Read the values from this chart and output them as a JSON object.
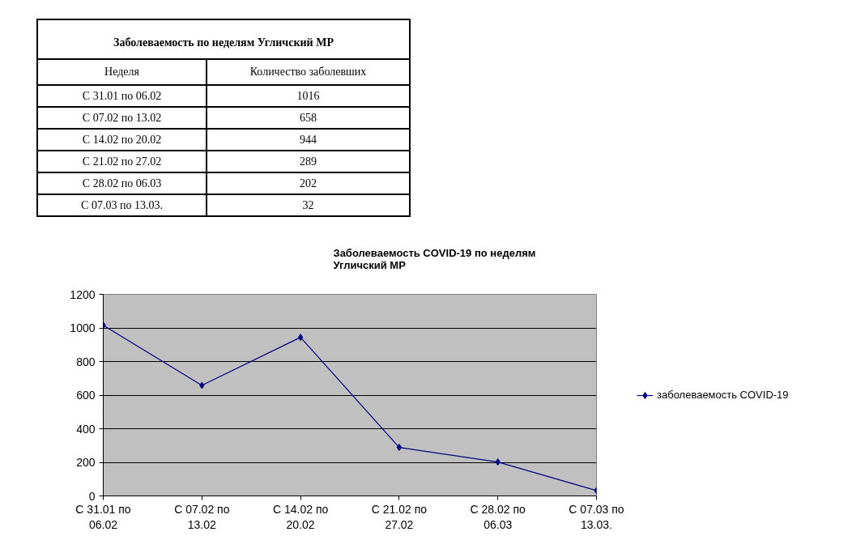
{
  "chart_data": [
    {
      "type": "other",
      "title": "Заболеваемость по неделям Угличский МР",
      "xlabel": "Неделя",
      "ylabel": "Количество заболевших",
      "categories": [
        "С 31.01 по 06.02",
        "С 07.02 по 13.02",
        "С 14.02 по 20.02",
        "С 21.02 по 27.02",
        "С 28.02 по 06.03",
        "С 07.03 по 13.03."
      ],
      "values": [
        1016,
        658,
        944,
        289,
        202,
        32
      ],
      "data_labels": true
    },
    {
      "type": "line",
      "title": "Заболеваемость COVID-19 по неделям\nУгличский МР",
      "categories": [
        "С 31.01 по 06.02",
        "С 07.02 по 13.02",
        "С 14.02 по 20.02",
        "С 21.02 по 27.02",
        "С 28.02 по 06.03",
        "С 07.03 по 13.03."
      ],
      "series": [
        {
          "name": "заболеваемость COVID-19",
          "color": "#000080",
          "values": [
            1016,
            658,
            944,
            289,
            202,
            32
          ]
        }
      ],
      "ylim": [
        0,
        1200
      ],
      "yticks": [
        0,
        200,
        400,
        600,
        800,
        1000,
        1200
      ],
      "grid": "y",
      "legend": "right",
      "marker": "diamond",
      "line_style": "solid"
    }
  ]
}
